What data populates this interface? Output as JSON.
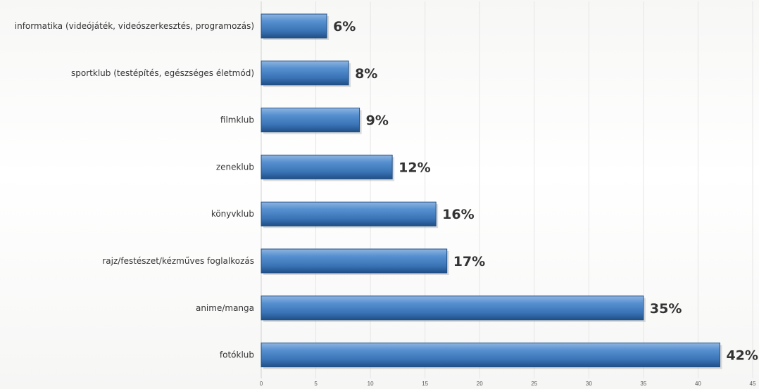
{
  "chart_data": {
    "type": "bar",
    "orientation": "horizontal",
    "categories": [
      "informatika (videójáték, videószerkesztés, programozás)",
      "sportklub (testépítés, egészséges életmód)",
      "filmklub",
      "zeneklub",
      "könyvklub",
      "rajz/festészet/kézműves foglalkozás",
      "anime/manga",
      "fotóklub"
    ],
    "values": [
      6,
      8,
      9,
      12,
      16,
      17,
      35,
      42
    ],
    "value_labels": [
      "6%",
      "8%",
      "9%",
      "12%",
      "16%",
      "17%",
      "35%",
      "42%"
    ],
    "x_ticks": [
      "0",
      "5",
      "10",
      "15",
      "20",
      "25",
      "30",
      "35",
      "40",
      "45"
    ],
    "xlim": [
      0,
      45
    ],
    "grid": true,
    "legend": "none",
    "bar_color": "#3f7bbf",
    "bar_edge_color": "#1f4f86"
  }
}
